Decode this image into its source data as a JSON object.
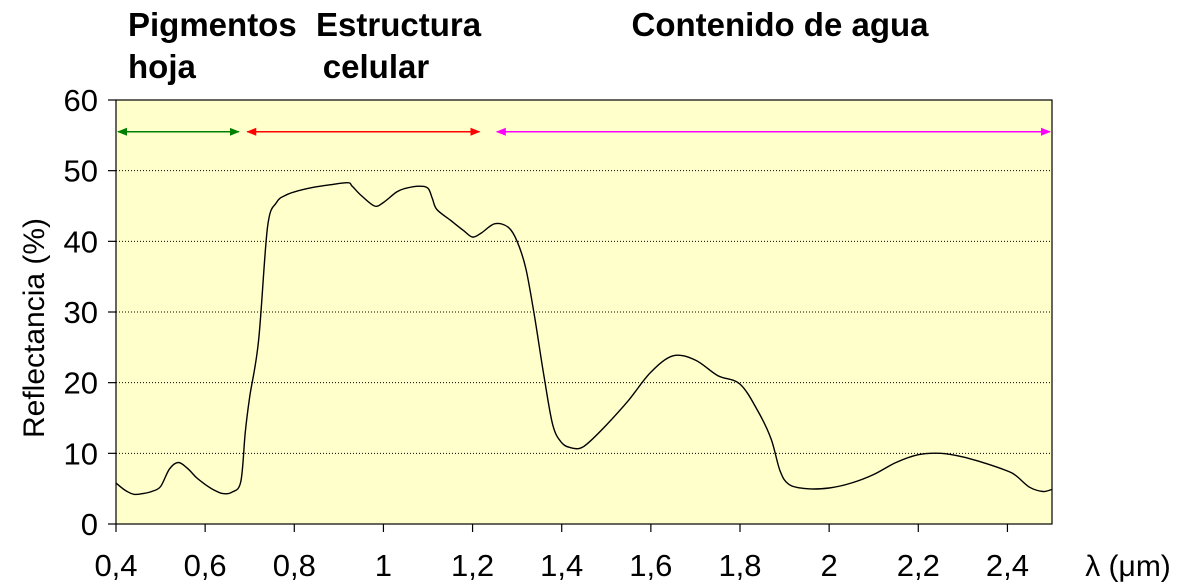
{
  "chart_data": {
    "type": "line",
    "xlabel": "λ (μm)",
    "ylabel": "Reflectancia (%)",
    "xlim": [
      0.4,
      2.5
    ],
    "ylim": [
      0,
      60
    ],
    "x_ticks": [
      0.4,
      0.6,
      0.8,
      1.0,
      1.2,
      1.4,
      1.6,
      1.8,
      2.0,
      2.2,
      2.4
    ],
    "x_tick_labels": [
      "0,4",
      "0,6",
      "0,8",
      "1",
      "1,2",
      "1,4",
      "1,6",
      "1,8",
      "2",
      "2,2",
      "2,4"
    ],
    "y_ticks": [
      0,
      10,
      20,
      30,
      40,
      50,
      60
    ],
    "y_tick_labels": [
      "0",
      "10",
      "20",
      "30",
      "40",
      "50",
      "60"
    ],
    "grid": "horizontal dotted",
    "background": "#ffffcc",
    "line_color": "#000000",
    "series": [
      {
        "x": [
          0.4,
          0.42,
          0.44,
          0.46,
          0.48,
          0.5,
          0.52,
          0.54,
          0.56,
          0.58,
          0.6,
          0.62,
          0.64,
          0.66,
          0.68,
          0.69,
          0.7,
          0.72,
          0.74,
          0.76,
          0.78,
          0.8,
          0.84,
          0.88,
          0.92,
          0.93,
          0.95,
          0.98,
          1.0,
          1.03,
          1.05,
          1.08,
          1.1,
          1.11,
          1.12,
          1.15,
          1.18,
          1.2,
          1.22,
          1.25,
          1.28,
          1.3,
          1.32,
          1.34,
          1.36,
          1.38,
          1.4,
          1.42,
          1.44,
          1.46,
          1.5,
          1.55,
          1.6,
          1.65,
          1.7,
          1.75,
          1.8,
          1.84,
          1.87,
          1.89,
          1.91,
          1.95,
          2.0,
          2.05,
          2.1,
          2.15,
          2.2,
          2.25,
          2.3,
          2.35,
          2.4,
          2.42,
          2.45,
          2.48,
          2.5
        ],
        "y": [
          5.8,
          4.8,
          4.2,
          4.3,
          4.6,
          5.3,
          7.8,
          8.7,
          7.9,
          6.6,
          5.6,
          4.8,
          4.3,
          4.5,
          6.0,
          13.0,
          18.0,
          26.0,
          42.0,
          45.5,
          46.5,
          47.0,
          47.6,
          48.0,
          48.3,
          47.8,
          46.5,
          45.0,
          45.5,
          47.0,
          47.5,
          47.8,
          47.5,
          46.0,
          44.5,
          43.0,
          41.5,
          40.6,
          41.2,
          42.5,
          42.0,
          40.0,
          36.0,
          29.0,
          21.0,
          14.0,
          11.5,
          10.8,
          10.7,
          11.5,
          14.0,
          17.5,
          21.5,
          23.8,
          23.2,
          21.0,
          19.8,
          16.0,
          12.0,
          7.5,
          5.6,
          5.0,
          5.1,
          5.8,
          7.0,
          8.7,
          9.8,
          10.0,
          9.5,
          8.6,
          7.5,
          6.8,
          5.2,
          4.6,
          4.9
        ]
      }
    ],
    "regions": [
      {
        "label_lines": [
          "Pigmentos",
          "hoja"
        ],
        "x_start": 0.4,
        "x_end": 0.68,
        "color": "#008000"
      },
      {
        "label_lines": [
          "Estructura",
          "celular"
        ],
        "x_start": 0.69,
        "x_end": 1.22,
        "color": "#ff0000"
      },
      {
        "label_lines": [
          "Contenido de agua"
        ],
        "x_start": 1.25,
        "x_end": 2.5,
        "color": "#ff00ff"
      }
    ]
  }
}
